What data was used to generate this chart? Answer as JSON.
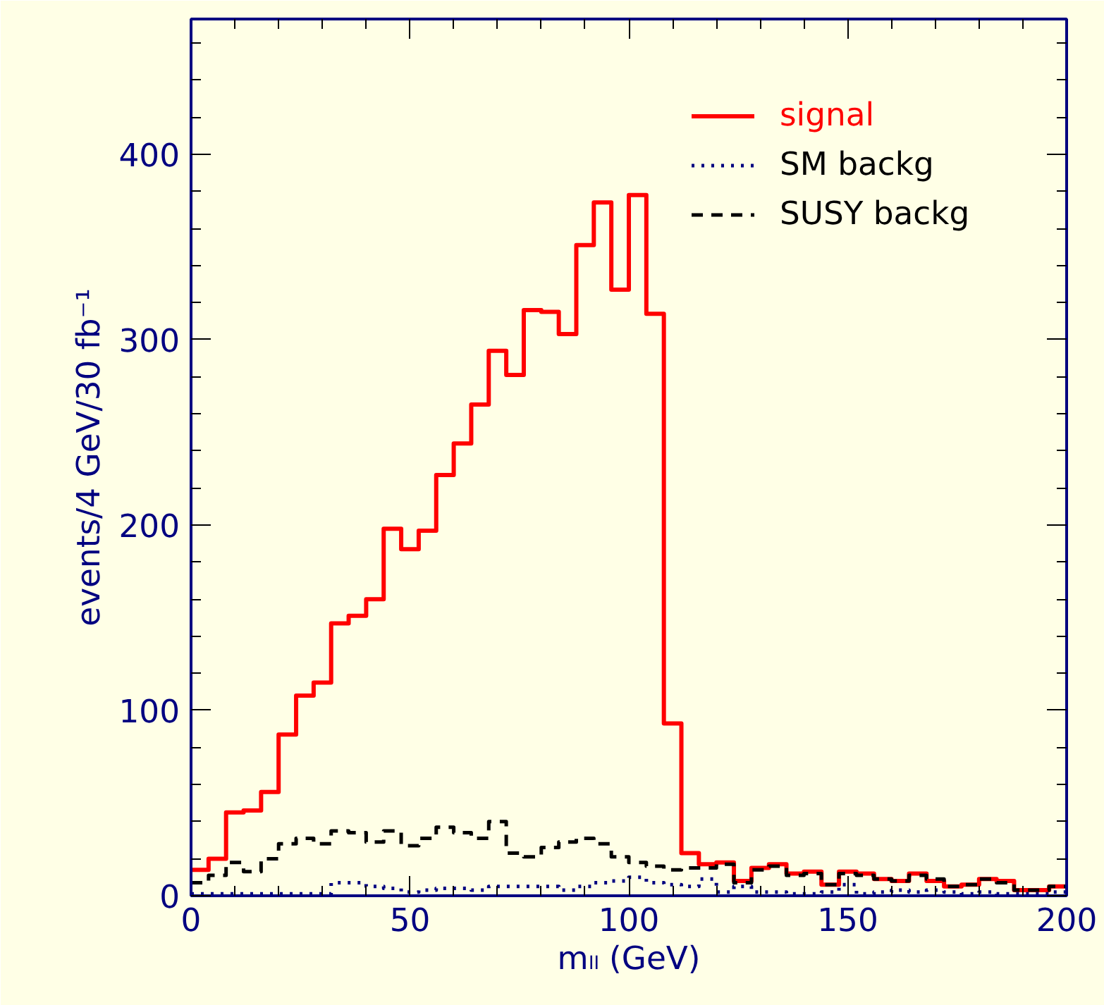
{
  "chart_data": {
    "type": "histogram",
    "xlabel": "mₗₗ (GeV)",
    "ylabel": "events/4 GeV/30 fb⁻¹",
    "bins": [
      0,
      4,
      8,
      12,
      16,
      20,
      24,
      28,
      32,
      36,
      40,
      44,
      48,
      52,
      56,
      60,
      64,
      68,
      72,
      76,
      80,
      84,
      88,
      92,
      96,
      100,
      104,
      108,
      112,
      116,
      120,
      124,
      128,
      132,
      136,
      140,
      144,
      148,
      152,
      156,
      160,
      164,
      168,
      172,
      176,
      180,
      184,
      188,
      192,
      196,
      200
    ],
    "series": [
      {
        "name": "signal",
        "color": "#ff0000",
        "line_style": "solid",
        "values": [
          14,
          20,
          45,
          46,
          56,
          87,
          108,
          115,
          147,
          151,
          160,
          198,
          187,
          197,
          227,
          244,
          265,
          294,
          281,
          316,
          315,
          303,
          351,
          374,
          327,
          378,
          314,
          93,
          23,
          17,
          18,
          8,
          15,
          17,
          12,
          13,
          6,
          13,
          12,
          9,
          8,
          12,
          8,
          5,
          6,
          9,
          8,
          3,
          3,
          5
        ]
      },
      {
        "name": "SM backg",
        "color": "#000080",
        "line_style": "dotted",
        "values": [
          1,
          1,
          1,
          1,
          1,
          1,
          1,
          1,
          7,
          7,
          5,
          4,
          2,
          3,
          4,
          4,
          3,
          5,
          5,
          5,
          5,
          3,
          5,
          7,
          8,
          10,
          7,
          6,
          5,
          9,
          2,
          5,
          2,
          2,
          1,
          1,
          2,
          6,
          1,
          2,
          3,
          2,
          3,
          2,
          1,
          2,
          1,
          1,
          1,
          2
        ]
      },
      {
        "name": "SUSY backg",
        "color": "#000000",
        "line_style": "dashed",
        "values": [
          7,
          11,
          18,
          13,
          20,
          28,
          31,
          28,
          35,
          34,
          29,
          35,
          27,
          31,
          37,
          34,
          31,
          40,
          23,
          21,
          26,
          29,
          31,
          28,
          21,
          18,
          16,
          14,
          15,
          15,
          17,
          7,
          14,
          16,
          11,
          12,
          6,
          12,
          11,
          9,
          8,
          11,
          9,
          5,
          6,
          9,
          7,
          3,
          3,
          5
        ]
      }
    ],
    "xlim": [
      0,
      200
    ],
    "ylim": [
      0,
      473
    ],
    "xticks": [
      0,
      50,
      100,
      150,
      200
    ],
    "yticks": [
      0,
      100,
      200,
      300,
      400
    ],
    "grid": false,
    "legend": "top right"
  }
}
